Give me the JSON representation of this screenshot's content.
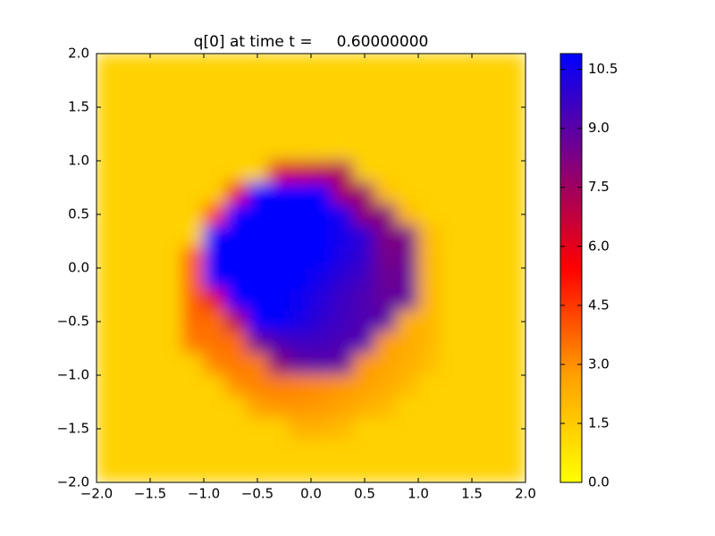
{
  "chart_data": {
    "type": "heatmap",
    "title": "q[0] at time t =     0.60000000",
    "xlim": [
      -2,
      2
    ],
    "ylim": [
      -2,
      2
    ],
    "xticks": [
      {
        "value": -2,
        "label": "−2.0"
      },
      {
        "value": -1.5,
        "label": "−1.5"
      },
      {
        "value": -1,
        "label": "−1.0"
      },
      {
        "value": -0.5,
        "label": "−0.5"
      },
      {
        "value": 0,
        "label": "0.0"
      },
      0.5,
      {
        "value": 1,
        "label": "1.0"
      },
      1.5,
      {
        "value": 2,
        "label": "2.0"
      }
    ],
    "yticks": [
      {
        "value": -2,
        "label": "−2.0"
      },
      {
        "value": -1.5,
        "label": "−1.5"
      },
      {
        "value": -1,
        "label": "−1.0"
      },
      {
        "value": -0.5,
        "label": "−0.5"
      },
      {
        "value": 0,
        "label": "0.0"
      },
      0.5,
      {
        "value": 1,
        "label": "1.0"
      },
      1.5,
      {
        "value": 2,
        "label": "2.0"
      }
    ],
    "clim": [
      0,
      10.9
    ],
    "cticks": [
      {
        "value": 0,
        "label": "0.0"
      },
      1.5,
      {
        "value": 3,
        "label": "3.0"
      },
      4.5,
      {
        "value": 6,
        "label": "6.0"
      },
      7.5,
      {
        "value": 9,
        "label": "9.0"
      },
      10.5
    ],
    "colormap": [
      "#ffff00",
      "#ffa000",
      "#ff0000",
      "#800080",
      "#0000ff"
    ],
    "z": [
      [
        1.3,
        1.3,
        1.3,
        1.3,
        1.3,
        1.3,
        1.3,
        1.3,
        1.3,
        1.3,
        1.3,
        1.3,
        1.3,
        1.3,
        1.3,
        1.3,
        1.3,
        1.3,
        1.3,
        1.3
      ],
      [
        1.3,
        1.3,
        1.3,
        1.3,
        1.3,
        1.3,
        1.3,
        1.3,
        1.3,
        1.3,
        1.3,
        1.3,
        1.3,
        1.3,
        1.3,
        1.3,
        1.3,
        1.3,
        1.3,
        1.3
      ],
      [
        1.3,
        1.3,
        1.3,
        1.3,
        1.3,
        1.3,
        1.3,
        1.3,
        1.3,
        1.3,
        1.3,
        1.3,
        1.3,
        1.3,
        1.3,
        1.3,
        1.3,
        1.3,
        1.3,
        1.3
      ],
      [
        1.3,
        1.3,
        1.3,
        1.3,
        1.3,
        1.3,
        1.3,
        1.3,
        1.3,
        1.3,
        1.3,
        1.3,
        1.3,
        1.3,
        1.3,
        1.3,
        1.3,
        1.3,
        1.3,
        1.3
      ],
      [
        1.3,
        1.3,
        1.3,
        1.3,
        1.3,
        1.3,
        1.3,
        1.3,
        1.3,
        1.3,
        1.3,
        1.3,
        1.3,
        1.3,
        1.3,
        1.3,
        1.3,
        1.3,
        1.3,
        1.3
      ],
      [
        1.3,
        1.3,
        1.3,
        1.3,
        1.3,
        1.3,
        1.3,
        1.3,
        6.2,
        6.5,
        6.8,
        7.2,
        1.3,
        1.3,
        1.3,
        1.3,
        1.3,
        1.3,
        1.3,
        1.3
      ],
      [
        1.3,
        1.3,
        1.3,
        1.3,
        1.3,
        1.3,
        5.8,
        10.9,
        10.9,
        10.9,
        10.9,
        7.3,
        7.6,
        1.8,
        1.3,
        1.3,
        1.3,
        1.3,
        1.3,
        1.3
      ],
      [
        1.3,
        1.3,
        1.3,
        1.3,
        1.3,
        4.5,
        10.9,
        10.9,
        10.9,
        10.9,
        10.9,
        10.5,
        7.8,
        8.0,
        2.0,
        1.3,
        1.3,
        1.3,
        1.3,
        1.3
      ],
      [
        1.3,
        1.3,
        1.3,
        1.3,
        1.3,
        10.9,
        10.9,
        10.9,
        10.9,
        10.9,
        10.9,
        10.5,
        10.0,
        8.2,
        8.3,
        2.0,
        1.3,
        1.3,
        1.3,
        1.3
      ],
      [
        1.3,
        1.3,
        1.3,
        1.3,
        3.9,
        10.9,
        10.9,
        10.9,
        10.9,
        10.9,
        10.9,
        10.3,
        9.8,
        8.4,
        8.5,
        2.1,
        1.3,
        1.3,
        1.3,
        1.3
      ],
      [
        1.3,
        1.3,
        1.3,
        1.3,
        3.9,
        10.9,
        10.9,
        10.9,
        10.9,
        10.9,
        10.4,
        9.9,
        9.5,
        8.6,
        8.7,
        2.1,
        1.3,
        1.3,
        1.3,
        1.3
      ],
      [
        1.3,
        1.3,
        1.3,
        1.3,
        3.8,
        6.0,
        10.9,
        10.9,
        10.9,
        10.6,
        10.1,
        9.6,
        9.2,
        8.8,
        8.8,
        2.2,
        1.3,
        1.3,
        1.3,
        1.3
      ],
      [
        1.3,
        1.3,
        1.3,
        1.3,
        3.7,
        3.6,
        7.0,
        10.9,
        10.8,
        10.4,
        9.9,
        9.5,
        9.2,
        9.0,
        2.3,
        2.1,
        1.3,
        1.3,
        1.3,
        1.3
      ],
      [
        1.3,
        1.3,
        1.3,
        1.3,
        3.4,
        3.5,
        3.6,
        8.5,
        9.3,
        9.6,
        9.5,
        9.3,
        9.1,
        2.8,
        2.4,
        2.1,
        1.3,
        1.3,
        1.3,
        1.3
      ],
      [
        1.3,
        1.3,
        1.3,
        1.3,
        1.3,
        3.2,
        3.4,
        3.3,
        8.0,
        8.8,
        9.0,
        8.8,
        2.9,
        2.6,
        2.3,
        1.9,
        1.3,
        1.3,
        1.3,
        1.3
      ],
      [
        1.3,
        1.3,
        1.3,
        1.3,
        1.3,
        1.3,
        3.0,
        3.2,
        3.3,
        3.2,
        3.1,
        2.9,
        2.7,
        2.4,
        2.0,
        1.3,
        1.3,
        1.3,
        1.3,
        1.3
      ],
      [
        1.3,
        1.3,
        1.3,
        1.3,
        1.3,
        1.3,
        1.3,
        2.7,
        2.9,
        2.9,
        2.8,
        2.6,
        2.3,
        2.0,
        1.3,
        1.3,
        1.3,
        1.3,
        1.3,
        1.3
      ],
      [
        1.3,
        1.3,
        1.3,
        1.3,
        1.3,
        1.3,
        1.3,
        1.3,
        1.3,
        2.3,
        2.2,
        2.0,
        1.3,
        1.3,
        1.3,
        1.3,
        1.3,
        1.3,
        1.3,
        1.3
      ],
      [
        1.3,
        1.3,
        1.3,
        1.3,
        1.3,
        1.3,
        1.3,
        1.3,
        1.3,
        1.3,
        1.3,
        1.3,
        1.3,
        1.3,
        1.3,
        1.3,
        1.3,
        1.3,
        1.3,
        1.3
      ],
      [
        1.3,
        1.3,
        1.3,
        1.3,
        1.3,
        1.3,
        1.3,
        1.3,
        1.3,
        1.3,
        1.3,
        1.3,
        1.3,
        1.3,
        1.3,
        1.3,
        1.3,
        1.3,
        1.3,
        1.3
      ]
    ]
  }
}
